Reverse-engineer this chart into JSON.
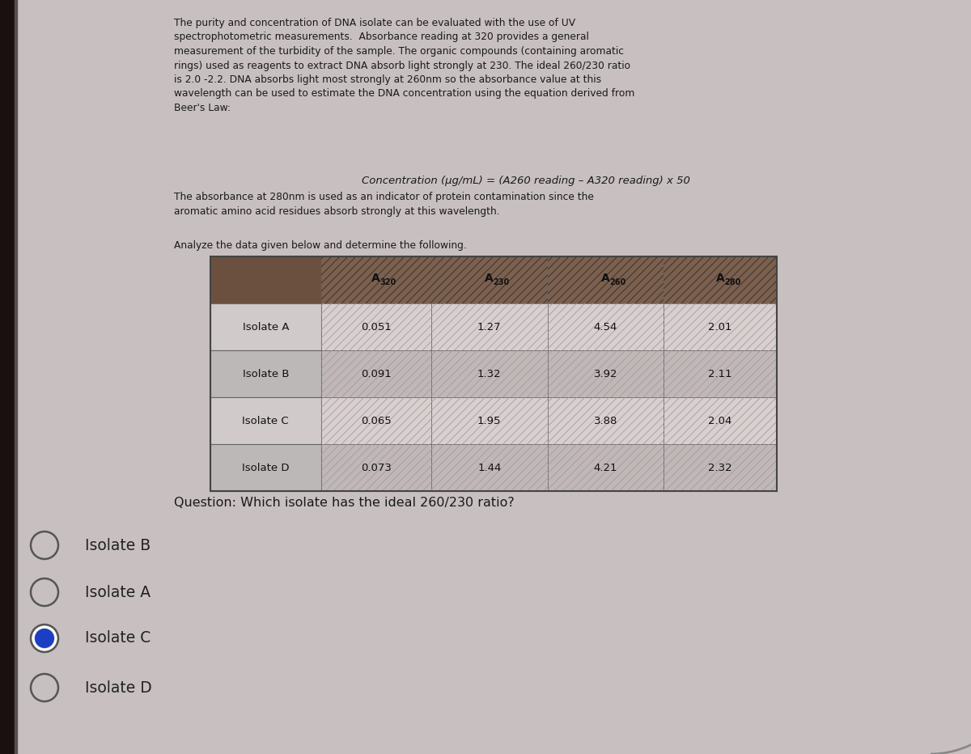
{
  "bg_color": "#c8c0c0",
  "paragraph_text": "The purity and concentration of DNA isolate can be evaluated with the use of UV\nspectrophotometric measurements.  Absorbance reading at 320 provides a general\nmeasurement of the turbidity of the sample. The organic compounds (containing aromatic\nrings) used as reagents to extract DNA absorb light strongly at 230. The ideal 260/230 ratio\nis 2.0 -2.2. DNA absorbs light most strongly at 260nm so the absorbance value at this\nwavelength can be used to estimate the DNA concentration using the equation derived from\nBeer's Law:",
  "equation_text": "Concentration (μg/mL) = (A260 reading – A320 reading) x 50",
  "paragraph2_text": "The absorbance at 280nm is used as an indicator of protein contamination since the\naromatic amino acid residues absorb strongly at this wavelength.",
  "analyze_text": "Analyze the data given below and determine the following.",
  "question_text": "Question: Which isolate has the ideal 260/230 ratio?",
  "table_headers": [
    "",
    "A320",
    "A230",
    "A260",
    "A280"
  ],
  "table_rows": [
    [
      "Isolate A",
      "0.051",
      "1.27",
      "4.54",
      "2.01"
    ],
    [
      "Isolate B",
      "0.091",
      "1.32",
      "3.92",
      "2.11"
    ],
    [
      "Isolate C",
      "0.065",
      "1.95",
      "3.88",
      "2.04"
    ],
    [
      "Isolate D",
      "0.073",
      "1.44",
      "4.21",
      "2.32"
    ]
  ],
  "radio_options": [
    "Isolate B",
    "Isolate A",
    "Isolate C",
    "Isolate D"
  ],
  "selected_option": "Isolate C",
  "selected_color": "#1a3fc4",
  "text_color": "#1a1a1a",
  "table_header_bg": "#6b5040",
  "table_header_hatch_bg": "#7a6050",
  "table_plain_bg_1": "#d0caca",
  "table_plain_bg_2": "#bcb8b8",
  "table_hatch_bg_1": "#d8d0d0",
  "table_hatch_bg_2": "#c0b8b8",
  "table_hatch_line": "#a89898"
}
